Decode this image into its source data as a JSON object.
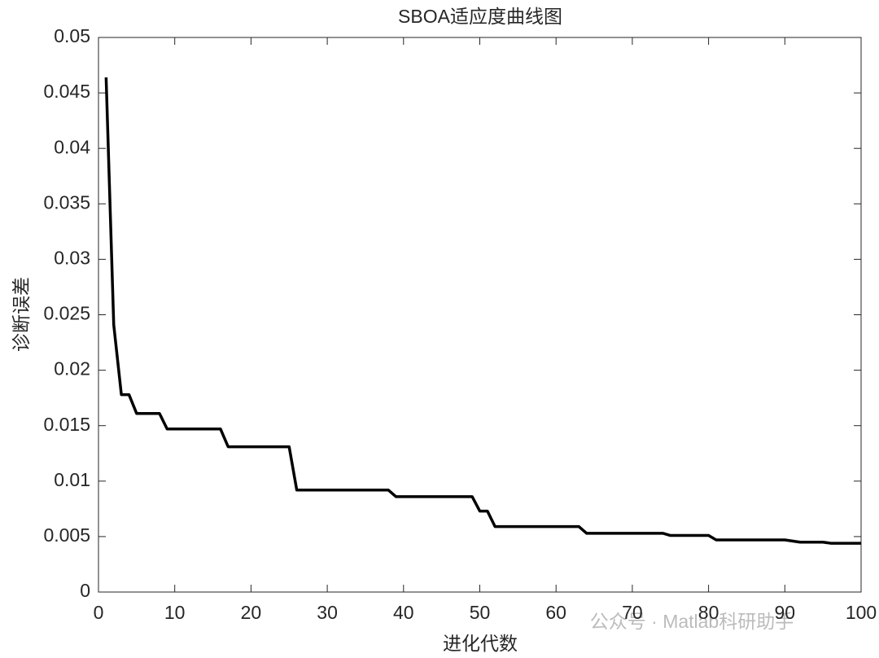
{
  "chart_data": {
    "type": "line",
    "title": "SBOA适应度曲线图",
    "xlabel": "进化代数",
    "ylabel": "诊断误差",
    "watermark": "公众号 · Matlab科研助手",
    "x": [
      1,
      2,
      3,
      4,
      5,
      6,
      7,
      8,
      9,
      10,
      11,
      12,
      13,
      14,
      15,
      16,
      17,
      18,
      19,
      20,
      21,
      22,
      23,
      24,
      25,
      26,
      27,
      28,
      29,
      30,
      31,
      32,
      33,
      34,
      35,
      36,
      37,
      38,
      39,
      40,
      41,
      42,
      43,
      44,
      45,
      46,
      47,
      48,
      49,
      50,
      51,
      52,
      53,
      54,
      55,
      56,
      57,
      58,
      59,
      60,
      61,
      62,
      63,
      64,
      65,
      66,
      67,
      68,
      69,
      70,
      71,
      72,
      73,
      74,
      75,
      76,
      77,
      78,
      79,
      80,
      81,
      82,
      83,
      84,
      85,
      86,
      87,
      88,
      89,
      90,
      91,
      92,
      93,
      94,
      95,
      96,
      97,
      98,
      99,
      100
    ],
    "series": [
      {
        "name": "SBOA",
        "color": "#000000",
        "values": [
          0.0464,
          0.0241,
          0.0178,
          0.0178,
          0.0161,
          0.0161,
          0.0161,
          0.0161,
          0.0147,
          0.0147,
          0.0147,
          0.0147,
          0.0147,
          0.0147,
          0.0147,
          0.0147,
          0.0131,
          0.0131,
          0.0131,
          0.0131,
          0.0131,
          0.0131,
          0.0131,
          0.0131,
          0.0131,
          0.0092,
          0.0092,
          0.0092,
          0.0092,
          0.0092,
          0.0092,
          0.0092,
          0.0092,
          0.0092,
          0.0092,
          0.0092,
          0.0092,
          0.0092,
          0.0086,
          0.0086,
          0.0086,
          0.0086,
          0.0086,
          0.0086,
          0.0086,
          0.0086,
          0.0086,
          0.0086,
          0.0086,
          0.0073,
          0.0073,
          0.0059,
          0.0059,
          0.0059,
          0.0059,
          0.0059,
          0.0059,
          0.0059,
          0.0059,
          0.0059,
          0.0059,
          0.0059,
          0.0059,
          0.0053,
          0.0053,
          0.0053,
          0.0053,
          0.0053,
          0.0053,
          0.0053,
          0.0053,
          0.0053,
          0.0053,
          0.0053,
          0.0051,
          0.0051,
          0.0051,
          0.0051,
          0.0051,
          0.0051,
          0.0047,
          0.0047,
          0.0047,
          0.0047,
          0.0047,
          0.0047,
          0.0047,
          0.0047,
          0.0047,
          0.0047,
          0.0046,
          0.0045,
          0.0045,
          0.0045,
          0.0045,
          0.0044,
          0.0044,
          0.0044,
          0.0044,
          0.0044
        ]
      }
    ],
    "xlim": [
      0,
      100
    ],
    "xticks": [
      0,
      10,
      20,
      30,
      40,
      50,
      60,
      70,
      80,
      90,
      100
    ],
    "ylim": [
      0,
      0.05
    ],
    "yticks": [
      0,
      0.005,
      0.01,
      0.015,
      0.02,
      0.025,
      0.03,
      0.035,
      0.04,
      0.045,
      0.05
    ]
  }
}
